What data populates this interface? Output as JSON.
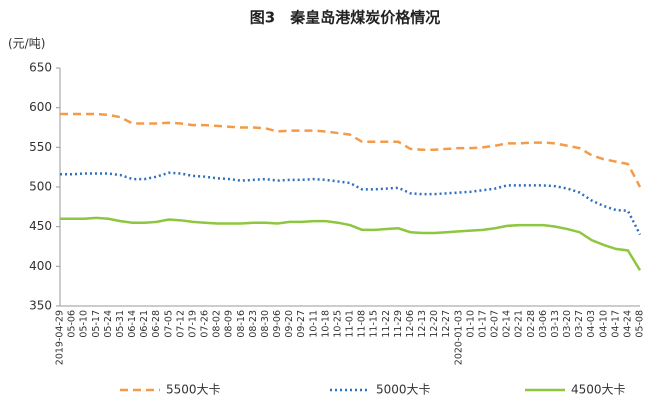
{
  "chart_data": {
    "type": "line",
    "title": "图3　秦皇岛港煤炭价格情况",
    "y_label": "(元/吨)",
    "categories": [
      "2019-04-29",
      "05-06",
      "05-10",
      "05-17",
      "05-24",
      "05-31",
      "06-14",
      "06-21",
      "06-28",
      "07-05",
      "07-12",
      "07-19",
      "07-26",
      "08-02",
      "08-09",
      "08-16",
      "08-23",
      "08-30",
      "09-06",
      "09-20",
      "09-27",
      "10-11",
      "10-18",
      "10-25",
      "11-01",
      "11-08",
      "11-15",
      "11-22",
      "11-29",
      "12-06",
      "12-13",
      "12-20",
      "12-27",
      "2020-01-03",
      "01-10",
      "01-17",
      "02-07",
      "02-14",
      "02-21",
      "02-28",
      "03-06",
      "03-13",
      "03-20",
      "03-27",
      "04-03",
      "04-10",
      "04-17",
      "04-24",
      "05-08"
    ],
    "series": [
      {
        "name": "5500大卡",
        "color": "#f39b4a",
        "dash": "dashed",
        "values": [
          592,
          592,
          592,
          592,
          591,
          588,
          580,
          580,
          580,
          581,
          580,
          578,
          578,
          577,
          576,
          575,
          575,
          574,
          570,
          571,
          571,
          571,
          570,
          568,
          566,
          557,
          557,
          557,
          557,
          548,
          547,
          547,
          548,
          549,
          549,
          550,
          552,
          555,
          555,
          556,
          556,
          555,
          552,
          549,
          540,
          535,
          532,
          529,
          500
        ]
      },
      {
        "name": "5000大卡",
        "color": "#2e6fc0",
        "dash": "dotted",
        "values": [
          516,
          516,
          517,
          517,
          517,
          515,
          510,
          510,
          513,
          518,
          517,
          514,
          513,
          511,
          510,
          508,
          509,
          510,
          508,
          509,
          509,
          510,
          509,
          507,
          505,
          497,
          497,
          498,
          499,
          492,
          491,
          491,
          492,
          493,
          494,
          496,
          498,
          502,
          502,
          502,
          502,
          501,
          498,
          493,
          483,
          476,
          471,
          470,
          440
        ]
      },
      {
        "name": "4500大卡",
        "color": "#8dc63f",
        "dash": "solid",
        "values": [
          460,
          460,
          460,
          461,
          460,
          457,
          455,
          455,
          456,
          459,
          458,
          456,
          455,
          454,
          454,
          454,
          455,
          455,
          454,
          456,
          456,
          457,
          457,
          455,
          452,
          446,
          446,
          447,
          448,
          443,
          442,
          442,
          443,
          444,
          445,
          446,
          448,
          451,
          452,
          452,
          452,
          450,
          447,
          443,
          433,
          427,
          422,
          420,
          395
        ]
      }
    ],
    "ylim": [
      350,
      650
    ],
    "yticks": [
      350,
      400,
      450,
      500,
      550,
      600,
      650
    ],
    "legend": "bottom"
  }
}
